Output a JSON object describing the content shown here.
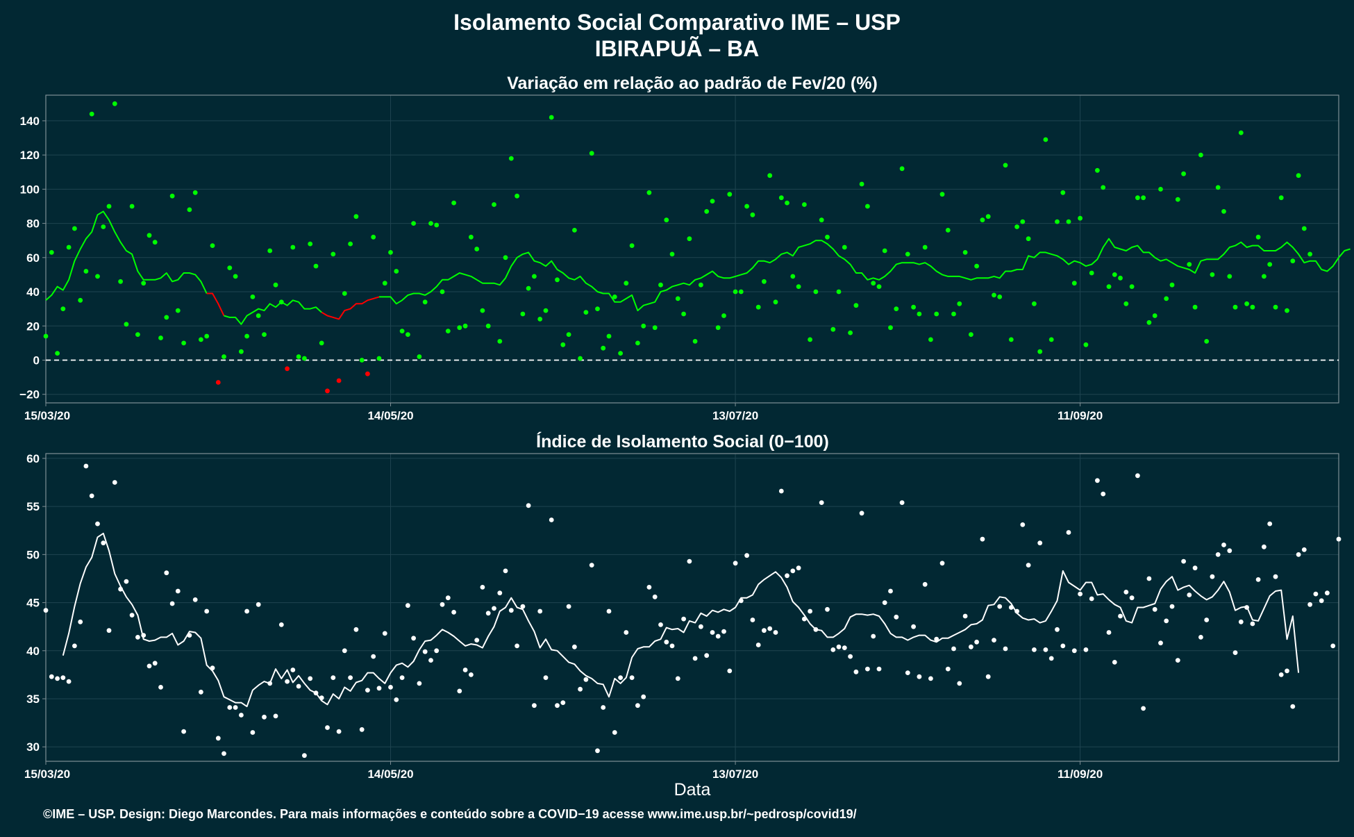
{
  "header": {
    "title_line1": "Isolamento Social Comparativo IME – USP",
    "title_line2": "IBIRAPUÃ – BA"
  },
  "xlabel": "Data",
  "footer": "©IME – USP. Design: Diego Marcondes. Para mais informações e conteúdo sobre a COVID−19 acesse www.ime.usp.br/~pedrosp/covid19/",
  "colors": {
    "background": "#022833",
    "panel_border": "#7f8f95",
    "grid": "#1f4450",
    "positive": "#00ff00",
    "negative": "#ff0000",
    "index": "#ffffff"
  },
  "chart_data": [
    {
      "type": "scatter",
      "title": "Variação em relação ao padrão de Fev/20 (%)",
      "x_tick_labels": [
        "15/03/20",
        "14/05/20",
        "13/07/20",
        "11/09/20"
      ],
      "x_tick_dates": [
        "2020-03-15",
        "2020-05-14",
        "2020-07-13",
        "2020-09-11"
      ],
      "xlim": [
        "2020-03-15",
        "2020-10-26"
      ],
      "ylim": [
        -25,
        155
      ],
      "y_ticks": [
        -20,
        0,
        20,
        40,
        60,
        80,
        100,
        120,
        140
      ],
      "reference_line": 0,
      "grid": true,
      "series": [
        {
          "values": [
            14,
            63,
            4,
            30,
            66,
            77,
            35,
            52,
            144,
            49,
            78,
            90,
            150,
            46,
            21,
            90,
            15,
            45,
            73,
            69,
            13,
            25,
            96,
            29,
            10,
            88,
            98,
            12,
            14,
            67,
            -13,
            2,
            54,
            49,
            5,
            14,
            37,
            26,
            15,
            64,
            44,
            34,
            -5,
            66,
            2,
            1,
            68,
            55,
            10,
            -18,
            62,
            -12,
            39,
            68,
            84,
            0,
            -8,
            72,
            1,
            45,
            63,
            52,
            17,
            15,
            80,
            2,
            34,
            80,
            79,
            40,
            17,
            92,
            19,
            20,
            72,
            65,
            29,
            20,
            91,
            11,
            60,
            118,
            96,
            27,
            42,
            49,
            24,
            29,
            142,
            47,
            9,
            15,
            76,
            1,
            28,
            121,
            30,
            7,
            14,
            37,
            4,
            45,
            67,
            10,
            20,
            98,
            19,
            44,
            82,
            62,
            36,
            27,
            71,
            11,
            44,
            87,
            93,
            19,
            26,
            97,
            40,
            40,
            90,
            85,
            31,
            46,
            108,
            34,
            95,
            92,
            49,
            43,
            91,
            12,
            40,
            82,
            72,
            18,
            40,
            66,
            16,
            32,
            103,
            90,
            45,
            43,
            64,
            19,
            30,
            112,
            62,
            31,
            27,
            66,
            12,
            27,
            97,
            76,
            27,
            33,
            63,
            15,
            55,
            82,
            84,
            38,
            37,
            114,
            12,
            78,
            81,
            71,
            33,
            5,
            129,
            12,
            81,
            98,
            81,
            45,
            83,
            9,
            51,
            111,
            101,
            43,
            50,
            48,
            33,
            43,
            95,
            95,
            22,
            26,
            100,
            36,
            44,
            94,
            109,
            56,
            31,
            120,
            11,
            50,
            101,
            87,
            49,
            31,
            133,
            33,
            31,
            72,
            49,
            56,
            31,
            95,
            29,
            58,
            108,
            77,
            62
          ]
        },
        {
          "name": "",
          "values": [
            null,
            null,
            null,
            null,
            null,
            null,
            null,
            null,
            null,
            null,
            null,
            null,
            null,
            null,
            null,
            null,
            null,
            null,
            null,
            null,
            null,
            null,
            null,
            null,
            null,
            null,
            null,
            null,
            null,
            null,
            null,
            null,
            null,
            null,
            null,
            null,
            null,
            null,
            null,
            null,
            null,
            null,
            null,
            null,
            null,
            null,
            null,
            null,
            null,
            null,
            null,
            null,
            null,
            null,
            null,
            null,
            null,
            null,
            null,
            null,
            null,
            null,
            null,
            null,
            null,
            null,
            null,
            null,
            null,
            null,
            null,
            null,
            null,
            null,
            null,
            null,
            null,
            null,
            null,
            null,
            null,
            null,
            null,
            null,
            null,
            null,
            null,
            null,
            null,
            null,
            null,
            null,
            null,
            null,
            null,
            null,
            null,
            null,
            null,
            null,
            null,
            null,
            null,
            null,
            null,
            null,
            null,
            null,
            null,
            null,
            null,
            null,
            null,
            null,
            null,
            null,
            null,
            null,
            null,
            null,
            null,
            null,
            null,
            null,
            null,
            null,
            null,
            null,
            null,
            null,
            null,
            null,
            null,
            null,
            null,
            null,
            null,
            null,
            null,
            null,
            null,
            null,
            null,
            null,
            null,
            null,
            null,
            null,
            null,
            null,
            null,
            null,
            null,
            null,
            null,
            null,
            null,
            null,
            null,
            null,
            null,
            null,
            null,
            null,
            null,
            null,
            null,
            null,
            null,
            null,
            null,
            null,
            null,
            null,
            null,
            null,
            null,
            null,
            null,
            null,
            null,
            null,
            null,
            null,
            null,
            null,
            null,
            null,
            null,
            null,
            null,
            null,
            null,
            null,
            null,
            null,
            null,
            null,
            null,
            null,
            null,
            null,
            null,
            null,
            null,
            null,
            null,
            null,
            null,
            null,
            null,
            null,
            null,
            null,
            null,
            null,
            null,
            null,
            null,
            null,
            null,
            null,
            null,
            null,
            null,
            null,
            null,
            null,
            null,
            null,
            null,
            null,
            null,
            null,
            null,
            null,
            null,
            null,
            null,
            null
          ]
        }
      ],
      "moving_average": [
        35,
        38,
        43,
        41,
        47,
        58,
        65,
        71,
        75,
        85,
        87,
        82,
        75,
        69,
        64,
        62,
        52,
        47,
        47,
        47,
        48,
        51,
        46,
        47,
        51,
        51,
        50,
        46,
        39,
        39,
        33,
        26,
        25,
        25,
        21,
        26,
        28,
        30,
        29,
        33,
        31,
        34,
        32,
        35,
        34,
        30,
        30,
        31,
        28,
        26,
        25,
        24,
        29,
        30,
        33,
        33,
        35,
        36,
        37,
        37,
        37,
        33,
        35,
        38,
        39,
        39,
        38,
        40,
        43,
        47,
        47,
        49,
        51,
        50,
        49,
        47,
        45,
        45,
        45,
        44,
        48,
        55,
        60,
        62,
        63,
        58,
        57,
        55,
        58,
        53,
        51,
        48,
        47,
        49,
        45,
        43,
        40,
        39,
        39,
        34,
        34,
        36,
        38,
        29,
        32,
        33,
        34,
        40,
        41,
        43,
        44,
        45,
        44,
        47,
        48,
        50,
        52,
        49,
        48,
        48,
        49,
        50,
        51,
        54,
        58,
        58,
        57,
        59,
        62,
        63,
        61,
        66,
        67,
        68,
        70,
        70,
        68,
        65,
        61,
        59,
        56,
        51,
        51,
        47,
        48,
        47,
        49,
        52,
        56,
        57,
        57,
        57,
        56,
        57,
        55,
        52,
        50,
        49,
        49,
        49,
        48,
        47,
        48,
        48,
        48,
        49,
        48,
        52,
        52,
        53,
        53,
        61,
        60,
        63,
        63,
        62,
        61,
        59,
        56,
        58,
        57,
        55,
        56,
        59,
        66,
        71,
        66,
        65,
        64,
        66,
        67,
        63,
        63,
        60,
        58,
        59,
        57,
        55,
        54,
        53,
        51,
        58,
        59,
        59,
        59,
        62,
        66,
        67,
        69,
        66,
        67,
        67,
        64,
        64,
        64,
        66,
        69,
        66,
        62,
        57,
        58,
        58,
        53,
        52,
        55,
        60,
        64,
        65
      ],
      "moving_average_negative_segments": [
        [
          28,
          31
        ],
        [
          48,
          58
        ]
      ]
    },
    {
      "type": "scatter",
      "title": "Índice de Isolamento Social (0−100)",
      "x_tick_labels": [
        "15/03/20",
        "14/05/20",
        "13/07/20",
        "11/09/20"
      ],
      "x_tick_dates": [
        "2020-03-15",
        "2020-05-14",
        "2020-07-13",
        "2020-09-11"
      ],
      "xlim": [
        "2020-03-15",
        "2020-10-26"
      ],
      "ylim": [
        28.5,
        60.5
      ],
      "y_ticks": [
        30,
        35,
        40,
        45,
        50,
        55,
        60
      ],
      "grid": true,
      "series": [
        {
          "values": [
            44.2,
            37.3,
            37.1,
            37.2,
            36.8,
            40.5,
            43,
            59.2,
            56.1,
            53.2,
            51.2,
            42.1,
            57.5,
            46.4,
            47.2,
            43.7,
            41.4,
            41.6,
            38.4,
            38.7,
            36.2,
            48.1,
            44.9,
            46.2,
            31.6,
            41.6,
            45.3,
            35.7,
            44.1,
            38.2,
            30.9,
            29.3,
            34.1,
            34.1,
            33.3,
            44.1,
            31.5,
            44.8,
            33.1,
            36.6,
            33.2,
            42.7,
            36.8,
            38,
            36.3,
            29.1,
            37.1,
            35.6,
            35.1,
            32,
            37.2,
            31.6,
            40,
            37.2,
            42.2,
            31.8,
            35.9,
            39.4,
            36.1,
            41.8,
            36.2,
            34.9,
            37.2,
            44.7,
            41.3,
            36.6,
            39.9,
            39,
            40,
            44.8,
            45.5,
            44,
            35.8,
            38,
            37.5,
            41.1,
            46.6,
            43.9,
            44.4,
            46,
            48.3,
            44.2,
            40.5,
            44.6,
            55.1,
            34.3,
            44.1,
            37.2,
            53.6,
            34.3,
            34.6,
            44.6,
            40.4,
            36,
            37,
            48.9,
            29.6,
            34.1,
            44.1,
            31.5,
            37.2,
            41.9,
            37.2,
            34.3,
            35.2,
            46.6,
            45.6,
            42.7,
            40.9,
            40.5,
            37.1,
            43.3,
            49.3,
            39.2,
            42.5,
            39.5,
            41.9,
            41.5,
            42,
            37.9,
            49.1,
            45.2,
            49.9,
            43.2,
            40.6,
            42.1,
            42.3,
            41.9,
            56.6,
            47.8,
            48.3,
            48.6,
            43.3,
            44.1,
            42.2,
            55.4,
            44.3,
            40.1,
            40.4,
            40.3,
            39.4,
            37.8,
            54.3,
            38.1,
            41.5,
            38.1,
            45,
            46.2,
            43.5,
            55.4,
            37.7,
            42.5,
            37.3,
            46.9,
            37.1,
            41.2,
            49.1,
            38.1,
            40.2,
            36.6,
            43.6,
            40.4,
            40.9,
            51.6,
            37.3,
            41.1,
            44.6,
            40.2,
            44.5,
            44.1,
            53.1,
            48.9,
            40.1,
            51.2,
            40.1,
            39.2,
            42.2,
            40.5,
            52.3,
            40,
            45.9,
            40.1,
            45.4,
            57.7,
            56.3,
            41.9,
            38.8,
            43.6,
            46.1,
            45.5,
            58.2,
            34,
            47.5,
            44.3,
            40.8,
            43.1,
            44.6,
            39,
            49.3,
            45.8,
            48.6,
            41.4,
            43.2,
            47.7,
            50,
            51,
            50.4,
            39.8,
            43,
            44.5,
            42.8,
            47.4,
            50.8,
            53.2,
            47.7,
            37.5,
            37.9,
            34.2,
            50,
            50.5,
            44.8,
            45.9,
            45.2,
            46,
            40.5,
            51.6
          ]
        }
      ],
      "moving_average": [
        null,
        null,
        null,
        39.5,
        41.8,
        44.6,
        47,
        48.7,
        49.7,
        51.8,
        52.2,
        50.4,
        48,
        46.7,
        45.6,
        44.8,
        43.7,
        41.2,
        41,
        41.1,
        41.4,
        41.4,
        41.8,
        40.6,
        41,
        42,
        41.9,
        41.3,
        38.5,
        37.9,
        36.9,
        35.2,
        34.9,
        34.6,
        34.6,
        34.2,
        35.9,
        36.4,
        36.8,
        36.6,
        38.1,
        37.1,
        38,
        36.7,
        37.4,
        36.6,
        35.9,
        35.6,
        34.8,
        34.4,
        35.5,
        35,
        36.2,
        35.8,
        36.7,
        36.9,
        37.7,
        37.7,
        37.1,
        36.6,
        37.7,
        38.5,
        38.7,
        38.3,
        38.9,
        40.1,
        41,
        41.1,
        41.6,
        42.2,
        41.9,
        41.5,
        41,
        40.5,
        40.7,
        40.6,
        40.3,
        41.5,
        42.5,
        44.1,
        44.5,
        45.5,
        44.5,
        44.3,
        43.1,
        42,
        40.3,
        41.2,
        40.1,
        40,
        39.4,
        38.8,
        38.6,
        37.9,
        37.4,
        37.1,
        36.6,
        36.5,
        35.2,
        37.1,
        36.6,
        37.2,
        39.3,
        40.2,
        40.4,
        40.4,
        41,
        41.2,
        42.4,
        42.2,
        42.3,
        41.9,
        43.1,
        42.9,
        43.9,
        43.6,
        44.2,
        44,
        44.3,
        44.1,
        44.5,
        45.5,
        45.5,
        45.8,
        46.9,
        47.4,
        47.8,
        48.2,
        47.6,
        46.6,
        45.1,
        44.5,
        43.7,
        42.8,
        42.2,
        42.1,
        41.4,
        41.4,
        41.8,
        42.3,
        43.5,
        43.8,
        43.8,
        43.7,
        43.8,
        43.6,
        42.8,
        41.8,
        41.4,
        41.4,
        41.1,
        41.4,
        41.6,
        41.6,
        41.1,
        40.9,
        41.3,
        41.3,
        41.6,
        41.9,
        42.2,
        42.7,
        42.8,
        43.2,
        44.7,
        44.8,
        45.6,
        45.5,
        44.9,
        43.9,
        43.4,
        43.2,
        43.3,
        42.9,
        43.1,
        44.1,
        45.2,
        48.3,
        47.1,
        46.7,
        46.3,
        47.1,
        47.1,
        45.8,
        45.9,
        45.3,
        44.8,
        44.5,
        43.1,
        42.9,
        44.5,
        44.5,
        44.7,
        44.9,
        46.4,
        47.2,
        47.7,
        46.3,
        46.6,
        46.8,
        46.2,
        45.7,
        45.3,
        45.6,
        46.3,
        47.2,
        46.1,
        44.2,
        44.5,
        44.6,
        43.2,
        43.1,
        44.4,
        45.7,
        46.2,
        46.3,
        41.2,
        43.6,
        37.7
      ]
    }
  ]
}
